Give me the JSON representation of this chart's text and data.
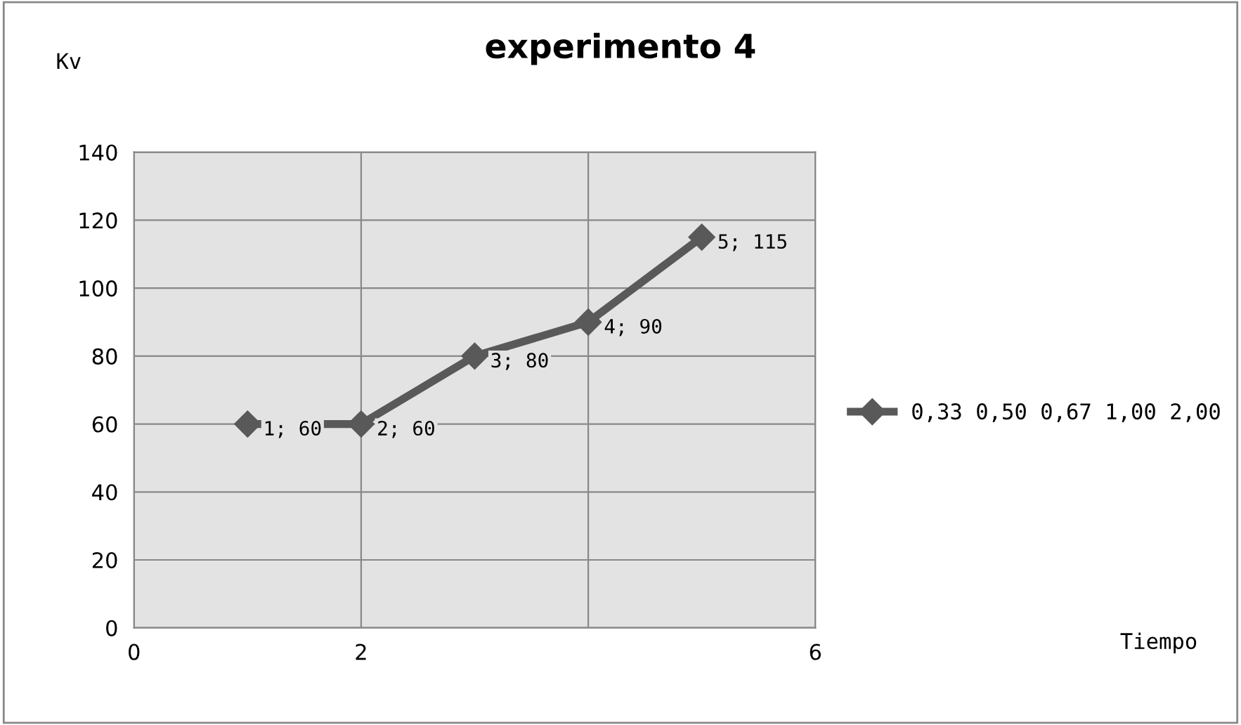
{
  "chart_data": {
    "type": "line",
    "title": "experimento 4",
    "ylabel": "Kv",
    "annotations": [
      "Tiempo"
    ],
    "series": [
      {
        "name": "0,33 0,50 0,67 1,00 2,00",
        "color": "#595959",
        "x": [
          1,
          2,
          3,
          4,
          5
        ],
        "values": [
          60,
          60,
          80,
          90,
          115
        ],
        "value_labels": [
          "1; 60",
          "2; 60",
          "3; 80",
          "4; 90",
          "5; 115"
        ]
      }
    ],
    "xlim": [
      0,
      6
    ],
    "xticks": [
      0,
      2,
      {
        "value": 4,
        "label": null
      },
      6
    ],
    "ylim": [
      0,
      140
    ],
    "yticks": [
      0,
      20,
      40,
      60,
      80,
      100,
      120,
      140
    ],
    "grid": true,
    "legend": "right",
    "marker": "diamond",
    "line_style": "solid"
  }
}
